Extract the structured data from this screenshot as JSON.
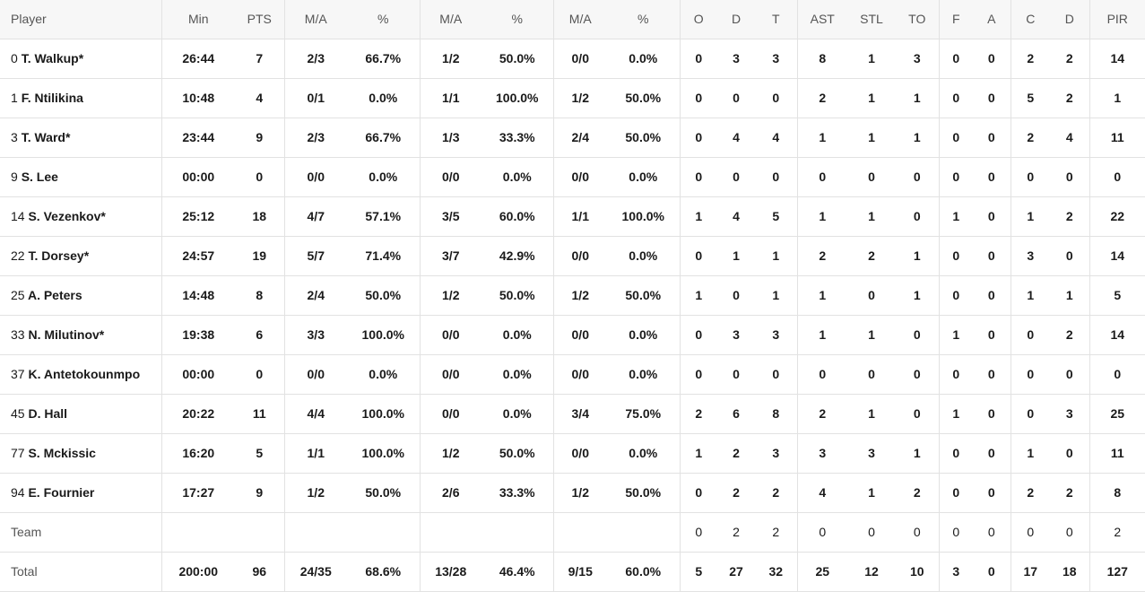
{
  "headers": [
    "Player",
    "Min",
    "PTS",
    "M/A",
    "%",
    "M/A",
    "%",
    "M/A",
    "%",
    "O",
    "D",
    "T",
    "AST",
    "STL",
    "TO",
    "F",
    "A",
    "C",
    "D",
    "PIR"
  ],
  "players": [
    {
      "number": "0",
      "name": "T. Walkup*",
      "stats": [
        "26:44",
        "7",
        "2/3",
        "66.7%",
        "1/2",
        "50.0%",
        "0/0",
        "0.0%",
        "0",
        "3",
        "3",
        "8",
        "1",
        "3",
        "0",
        "0",
        "2",
        "2",
        "14"
      ]
    },
    {
      "number": "1",
      "name": "F. Ntilikina",
      "stats": [
        "10:48",
        "4",
        "0/1",
        "0.0%",
        "1/1",
        "100.0%",
        "1/2",
        "50.0%",
        "0",
        "0",
        "0",
        "2",
        "1",
        "1",
        "0",
        "0",
        "5",
        "2",
        "1"
      ]
    },
    {
      "number": "3",
      "name": "T. Ward*",
      "stats": [
        "23:44",
        "9",
        "2/3",
        "66.7%",
        "1/3",
        "33.3%",
        "2/4",
        "50.0%",
        "0",
        "4",
        "4",
        "1",
        "1",
        "1",
        "0",
        "0",
        "2",
        "4",
        "11"
      ]
    },
    {
      "number": "9",
      "name": "S. Lee",
      "stats": [
        "00:00",
        "0",
        "0/0",
        "0.0%",
        "0/0",
        "0.0%",
        "0/0",
        "0.0%",
        "0",
        "0",
        "0",
        "0",
        "0",
        "0",
        "0",
        "0",
        "0",
        "0",
        "0"
      ]
    },
    {
      "number": "14",
      "name": "S. Vezenkov*",
      "stats": [
        "25:12",
        "18",
        "4/7",
        "57.1%",
        "3/5",
        "60.0%",
        "1/1",
        "100.0%",
        "1",
        "4",
        "5",
        "1",
        "1",
        "0",
        "1",
        "0",
        "1",
        "2",
        "22"
      ]
    },
    {
      "number": "22",
      "name": "T. Dorsey*",
      "stats": [
        "24:57",
        "19",
        "5/7",
        "71.4%",
        "3/7",
        "42.9%",
        "0/0",
        "0.0%",
        "0",
        "1",
        "1",
        "2",
        "2",
        "1",
        "0",
        "0",
        "3",
        "0",
        "14"
      ]
    },
    {
      "number": "25",
      "name": "A. Peters",
      "stats": [
        "14:48",
        "8",
        "2/4",
        "50.0%",
        "1/2",
        "50.0%",
        "1/2",
        "50.0%",
        "1",
        "0",
        "1",
        "1",
        "0",
        "1",
        "0",
        "0",
        "1",
        "1",
        "5"
      ]
    },
    {
      "number": "33",
      "name": "N. Milutinov*",
      "stats": [
        "19:38",
        "6",
        "3/3",
        "100.0%",
        "0/0",
        "0.0%",
        "0/0",
        "0.0%",
        "0",
        "3",
        "3",
        "1",
        "1",
        "0",
        "1",
        "0",
        "0",
        "2",
        "14"
      ]
    },
    {
      "number": "37",
      "name": "K. Antetokounmpo",
      "stats": [
        "00:00",
        "0",
        "0/0",
        "0.0%",
        "0/0",
        "0.0%",
        "0/0",
        "0.0%",
        "0",
        "0",
        "0",
        "0",
        "0",
        "0",
        "0",
        "0",
        "0",
        "0",
        "0"
      ]
    },
    {
      "number": "45",
      "name": "D. Hall",
      "stats": [
        "20:22",
        "11",
        "4/4",
        "100.0%",
        "0/0",
        "0.0%",
        "3/4",
        "75.0%",
        "2",
        "6",
        "8",
        "2",
        "1",
        "0",
        "1",
        "0",
        "0",
        "3",
        "25"
      ]
    },
    {
      "number": "77",
      "name": "S. Mckissic",
      "stats": [
        "16:20",
        "5",
        "1/1",
        "100.0%",
        "1/2",
        "50.0%",
        "0/0",
        "0.0%",
        "1",
        "2",
        "3",
        "3",
        "3",
        "1",
        "0",
        "0",
        "1",
        "0",
        "11"
      ]
    },
    {
      "number": "94",
      "name": "E. Fournier",
      "stats": [
        "17:27",
        "9",
        "1/2",
        "50.0%",
        "2/6",
        "33.3%",
        "1/2",
        "50.0%",
        "0",
        "2",
        "2",
        "4",
        "1",
        "2",
        "0",
        "0",
        "2",
        "2",
        "8"
      ]
    }
  ],
  "team_row": {
    "label": "Team",
    "stats": [
      "",
      "",
      "",
      "",
      "",
      "",
      "",
      "",
      "0",
      "2",
      "2",
      "0",
      "0",
      "0",
      "0",
      "0",
      "0",
      "0",
      "2"
    ]
  },
  "total_row": {
    "label": "Total",
    "stats": [
      "200:00",
      "96",
      "24/35",
      "68.6%",
      "13/28",
      "46.4%",
      "9/15",
      "60.0%",
      "5",
      "27",
      "32",
      "25",
      "12",
      "10",
      "3",
      "0",
      "17",
      "18",
      "127"
    ]
  }
}
